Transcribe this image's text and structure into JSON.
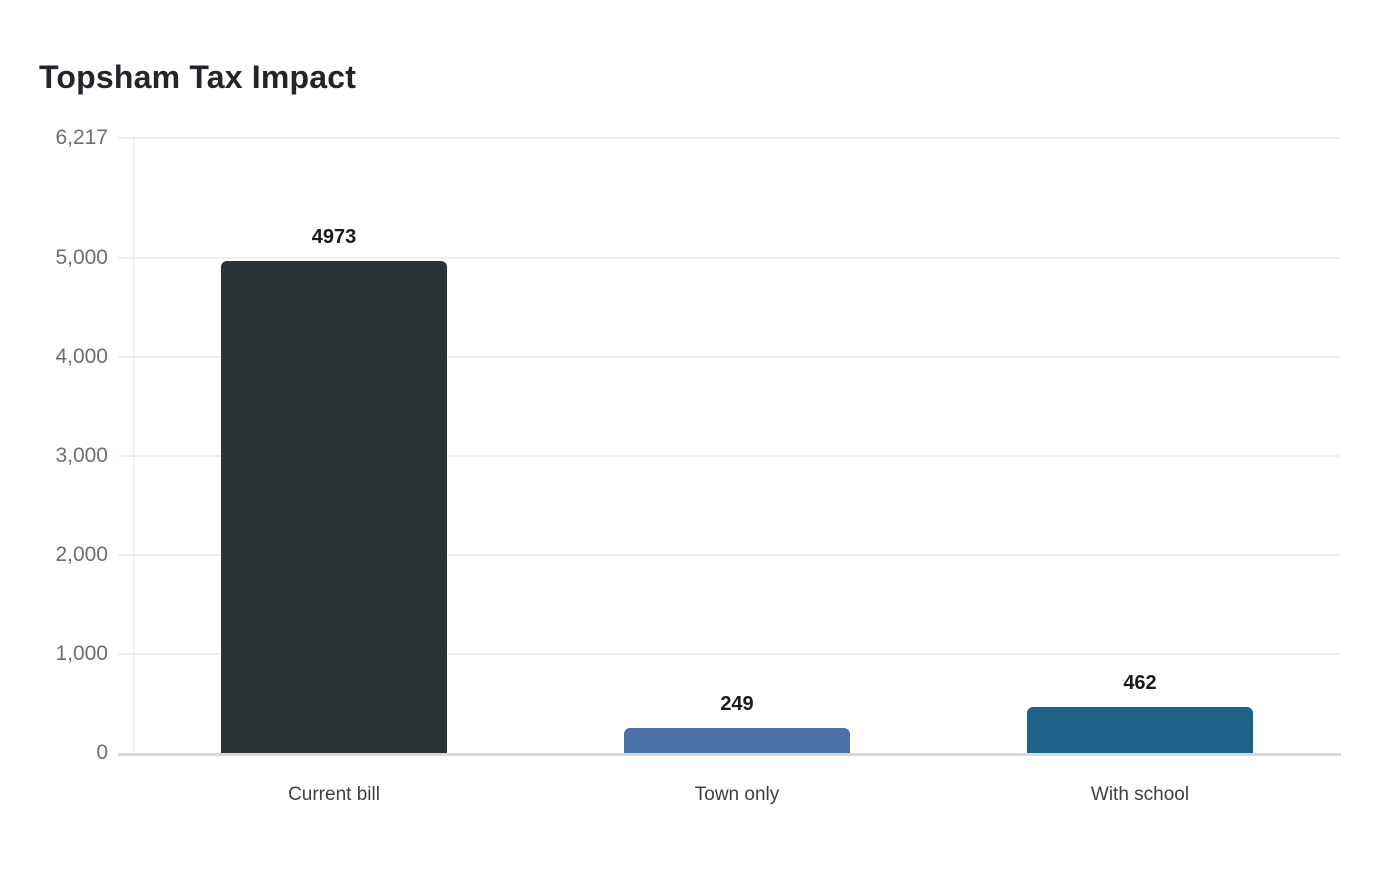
{
  "chart_data": {
    "type": "bar",
    "title": "Topsham Tax Impact",
    "categories": [
      "Current bill",
      "Town only",
      "With school"
    ],
    "values": [
      4973,
      249,
      462
    ],
    "value_labels": [
      "4973",
      "249",
      "462"
    ],
    "bar_colors": [
      "#2c3337",
      "#4c70a8",
      "#1d6287"
    ],
    "y_ticks": [
      6217,
      5000,
      4000,
      3000,
      2000,
      1000,
      0
    ],
    "y_tick_labels": [
      "6,217",
      "5,000",
      "4,000",
      "3,000",
      "2,000",
      "1,000",
      "0"
    ],
    "ylim": [
      0,
      6217
    ],
    "xlabel": "",
    "ylabel": "",
    "grid": true,
    "legend": "none"
  },
  "style": {
    "background": "#ffffff",
    "title_color": "#21262b",
    "grid_color": "#eeeeee",
    "baseline_color": "#d9d9d9",
    "axis_line_color": "#d4d4d4",
    "y_tick_label_color": "#6e6e6e",
    "category_label_color": "#3f3f3f",
    "value_label_color": "#1a1a1a"
  }
}
